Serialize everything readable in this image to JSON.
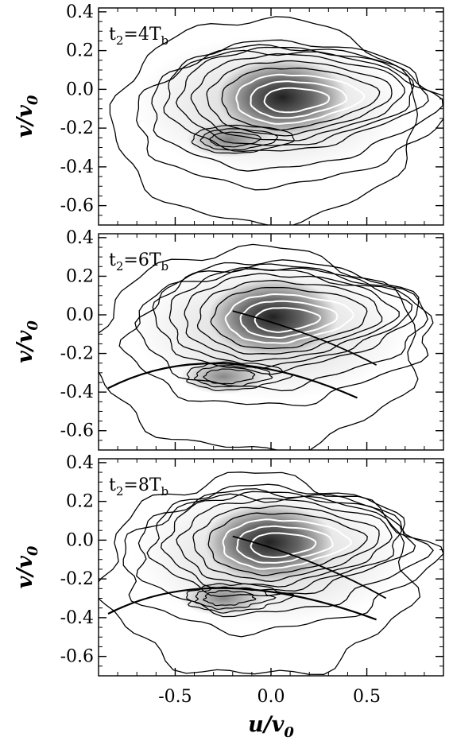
{
  "chart_data": [
    {
      "type": "contour",
      "panel_label": {
        "base": "t",
        "sub1": "2",
        "mid": "=4T",
        "sub2": "b"
      },
      "xlim": [
        -0.9,
        0.9
      ],
      "ylim": [
        -0.7,
        0.42
      ],
      "y_ticks": [
        "0.4",
        "0.2",
        "0.0",
        "-0.2",
        "-0.4",
        "-0.6"
      ],
      "y_tick_values": [
        0.4,
        0.2,
        0.0,
        -0.2,
        -0.4,
        -0.6
      ],
      "ylabel": {
        "base": "v/v",
        "sub": "0"
      },
      "peak": {
        "u": 0.1,
        "v": -0.06
      },
      "secondary_peak": {
        "u": -0.22,
        "v": -0.26
      },
      "outer_extent": {
        "u": [
          -0.8,
          0.75
        ],
        "v": [
          -0.67,
          0.36
        ]
      }
    },
    {
      "type": "contour",
      "panel_label": {
        "base": "t",
        "sub1": "2",
        "mid": "=6T",
        "sub2": "b"
      },
      "xlim": [
        -0.9,
        0.9
      ],
      "ylim": [
        -0.7,
        0.42
      ],
      "y_ticks": [
        "0.4",
        "0.2",
        "0.0",
        "-0.2",
        "-0.4",
        "-0.6"
      ],
      "y_tick_values": [
        0.4,
        0.2,
        0.0,
        -0.2,
        -0.4,
        -0.6
      ],
      "ylabel": {
        "base": "v/v",
        "sub": "0"
      },
      "peak": {
        "u": 0.05,
        "v": -0.03
      },
      "secondary_peak": {
        "u": -0.25,
        "v": -0.32
      },
      "outer_extent": {
        "u": [
          -0.9,
          0.75
        ],
        "v": [
          -0.68,
          0.34
        ]
      }
    },
    {
      "type": "contour",
      "panel_label": {
        "base": "t",
        "sub1": "2",
        "mid": "=8T",
        "sub2": "b"
      },
      "xlim": [
        -0.9,
        0.9
      ],
      "ylim": [
        -0.7,
        0.42
      ],
      "y_ticks": [
        "0.4",
        "0.2",
        "0.0",
        "-0.2",
        "-0.4",
        "-0.6"
      ],
      "y_tick_values": [
        0.4,
        0.2,
        0.0,
        -0.2,
        -0.4,
        -0.6
      ],
      "ylabel": {
        "base": "v/v",
        "sub": "0"
      },
      "peak": {
        "u": 0.03,
        "v": -0.03
      },
      "secondary_peak": {
        "u": -0.25,
        "v": -0.3
      },
      "outer_extent": {
        "u": [
          -0.85,
          0.72
        ],
        "v": [
          -0.68,
          0.33
        ]
      }
    }
  ],
  "x_axis": {
    "ticks": [
      "-0.5",
      "0.0",
      "0.5"
    ],
    "tick_values": [
      -0.5,
      0.0,
      0.5
    ],
    "xlabel": {
      "base": "u/v",
      "sub": "0"
    }
  }
}
